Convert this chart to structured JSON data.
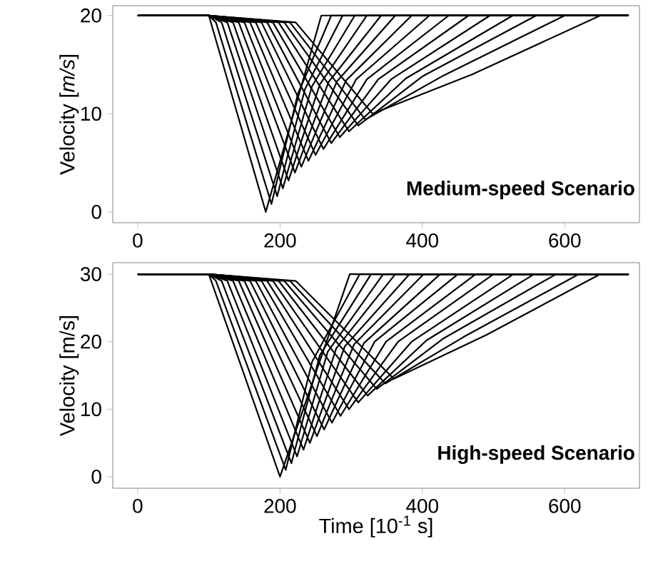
{
  "chart_data": [
    {
      "type": "line",
      "ylabel": "Velocity [*m/s*]",
      "xlim": [
        -35,
        705
      ],
      "ylim": [
        -1.1,
        21
      ],
      "xticks": [
        0,
        200,
        400,
        600
      ],
      "yticks": [
        0,
        10,
        20
      ],
      "annotations": [
        "**Medium-speed Scenario**"
      ],
      "line_style": "solid",
      "series": [
        {
          "color": "#000000",
          "x": [
            0,
            100,
            180,
            258,
            690
          ],
          "values": [
            20,
            20,
            0,
            20,
            20
          ]
        },
        {
          "color": "#000000",
          "x": [
            0,
            100,
            110,
            188,
            225,
            272,
            690
          ],
          "values": [
            20,
            20,
            19.3,
            0.8,
            12.0,
            20,
            20
          ]
        },
        {
          "color": "#000000",
          "x": [
            0,
            100,
            118,
            196,
            235,
            288,
            690
          ],
          "values": [
            20,
            20,
            19.3,
            1.6,
            12.5,
            20,
            20
          ]
        },
        {
          "color": "#000000",
          "x": [
            0,
            100,
            126,
            204,
            245,
            305,
            690
          ],
          "values": [
            20,
            20,
            19.3,
            2.4,
            12.8,
            20,
            20
          ]
        },
        {
          "color": "#000000",
          "x": [
            0,
            100,
            134,
            212,
            256,
            322,
            690
          ],
          "values": [
            20,
            20,
            19.3,
            3.2,
            13.0,
            20,
            20
          ]
        },
        {
          "color": "#000000",
          "x": [
            0,
            100,
            142,
            221,
            268,
            342,
            690
          ],
          "values": [
            20,
            20,
            19.3,
            4.0,
            13.2,
            20,
            20
          ]
        },
        {
          "color": "#000000",
          "x": [
            0,
            100,
            150,
            230,
            280,
            362,
            690
          ],
          "values": [
            20,
            20,
            19.3,
            4.6,
            13.3,
            20,
            20
          ]
        },
        {
          "color": "#000000",
          "x": [
            0,
            100,
            158,
            240,
            293,
            385,
            690
          ],
          "values": [
            20,
            20,
            19.3,
            5.2,
            13.4,
            20,
            20
          ]
        },
        {
          "color": "#000000",
          "x": [
            0,
            100,
            166,
            250,
            307,
            410,
            690
          ],
          "values": [
            20,
            20,
            19.3,
            5.8,
            13.5,
            20,
            20
          ]
        },
        {
          "color": "#000000",
          "x": [
            0,
            100,
            174,
            261,
            322,
            437,
            690
          ],
          "values": [
            20,
            20,
            19.3,
            6.4,
            13.5,
            20,
            20
          ]
        },
        {
          "color": "#000000",
          "x": [
            0,
            100,
            182,
            272,
            338,
            465,
            690
          ],
          "values": [
            20,
            20,
            19.3,
            7.0,
            13.5,
            20,
            20
          ]
        },
        {
          "color": "#000000",
          "x": [
            0,
            100,
            190,
            284,
            356,
            495,
            690
          ],
          "values": [
            20,
            20,
            19.3,
            7.6,
            13.5,
            20,
            20
          ]
        },
        {
          "color": "#000000",
          "x": [
            0,
            100,
            198,
            297,
            377,
            527,
            690
          ],
          "values": [
            20,
            20,
            19.3,
            8.2,
            13.6,
            20,
            20
          ]
        },
        {
          "color": "#000000",
          "x": [
            0,
            100,
            206,
            310,
            400,
            560,
            690
          ],
          "values": [
            20,
            20,
            19.3,
            8.8,
            13.8,
            20,
            20
          ]
        },
        {
          "color": "#000000",
          "x": [
            0,
            100,
            214,
            320,
            430,
            600,
            690
          ],
          "values": [
            20,
            20,
            19.3,
            9.4,
            13.9,
            20,
            20
          ]
        },
        {
          "color": "#000000",
          "x": [
            0,
            100,
            222,
            330,
            470,
            650,
            690
          ],
          "values": [
            20,
            20,
            19.3,
            10.0,
            14.0,
            20,
            20
          ]
        }
      ]
    },
    {
      "type": "line",
      "ylabel": "Velocity [m/s]",
      "xlabel": "Time [10$^{-1}$ s]",
      "xlim": [
        -35,
        705
      ],
      "ylim": [
        -1.7,
        31.7
      ],
      "xticks": [
        0,
        200,
        400,
        600
      ],
      "yticks": [
        0,
        10,
        20,
        30
      ],
      "annotations": [
        "**High-speed Scenario**"
      ],
      "line_style": "solid",
      "series": [
        {
          "color": "#000000",
          "x": [
            0,
            100,
            200,
            298,
            690
          ],
          "values": [
            30,
            30,
            0,
            30,
            30
          ]
        },
        {
          "color": "#000000",
          "x": [
            0,
            100,
            110,
            208,
            245,
            312,
            690
          ],
          "values": [
            30,
            30,
            29.0,
            1.0,
            17.0,
            30,
            30
          ]
        },
        {
          "color": "#000000",
          "x": [
            0,
            100,
            118,
            216,
            256,
            328,
            690
          ],
          "values": [
            30,
            30,
            29.0,
            2.0,
            18.0,
            30,
            30
          ]
        },
        {
          "color": "#000000",
          "x": [
            0,
            100,
            126,
            224,
            267,
            345,
            690
          ],
          "values": [
            30,
            30,
            29.0,
            3.0,
            18.5,
            30,
            30
          ]
        },
        {
          "color": "#000000",
          "x": [
            0,
            100,
            134,
            233,
            279,
            362,
            690
          ],
          "values": [
            30,
            30,
            29.0,
            4.0,
            19.0,
            30,
            30
          ]
        },
        {
          "color": "#000000",
          "x": [
            0,
            100,
            142,
            242,
            291,
            382,
            690
          ],
          "values": [
            30,
            30,
            29.0,
            5.0,
            19.3,
            30,
            30
          ]
        },
        {
          "color": "#000000",
          "x": [
            0,
            100,
            150,
            252,
            304,
            402,
            690
          ],
          "values": [
            30,
            30,
            29.0,
            6.0,
            19.6,
            30,
            30
          ]
        },
        {
          "color": "#000000",
          "x": [
            0,
            100,
            158,
            262,
            318,
            425,
            690
          ],
          "values": [
            30,
            30,
            29.0,
            7.0,
            19.8,
            30,
            30
          ]
        },
        {
          "color": "#000000",
          "x": [
            0,
            100,
            166,
            273,
            333,
            450,
            690
          ],
          "values": [
            30,
            30,
            29.0,
            8.0,
            20.0,
            30,
            30
          ]
        },
        {
          "color": "#000000",
          "x": [
            0,
            100,
            174,
            285,
            349,
            475,
            690
          ],
          "values": [
            30,
            30,
            29.0,
            9.0,
            20.0,
            30,
            30
          ]
        },
        {
          "color": "#000000",
          "x": [
            0,
            100,
            182,
            297,
            366,
            500,
            690
          ],
          "values": [
            30,
            30,
            29.0,
            10.0,
            20.0,
            30,
            30
          ]
        },
        {
          "color": "#000000",
          "x": [
            0,
            100,
            190,
            310,
            385,
            528,
            690
          ],
          "values": [
            30,
            30,
            29.0,
            11.0,
            20.0,
            30,
            30
          ]
        },
        {
          "color": "#000000",
          "x": [
            0,
            100,
            198,
            323,
            406,
            557,
            690
          ],
          "values": [
            30,
            30,
            29.0,
            12.0,
            20.2,
            30,
            30
          ]
        },
        {
          "color": "#000000",
          "x": [
            0,
            100,
            206,
            336,
            430,
            588,
            690
          ],
          "values": [
            30,
            30,
            29.0,
            13.0,
            20.5,
            30,
            30
          ]
        },
        {
          "color": "#000000",
          "x": [
            0,
            100,
            214,
            348,
            458,
            620,
            690
          ],
          "values": [
            30,
            30,
            29.0,
            13.8,
            20.7,
            30,
            30
          ]
        },
        {
          "color": "#000000",
          "x": [
            0,
            100,
            222,
            360,
            490,
            650,
            690
          ],
          "values": [
            30,
            30,
            29.0,
            14.5,
            21.0,
            30,
            30
          ]
        }
      ]
    }
  ]
}
